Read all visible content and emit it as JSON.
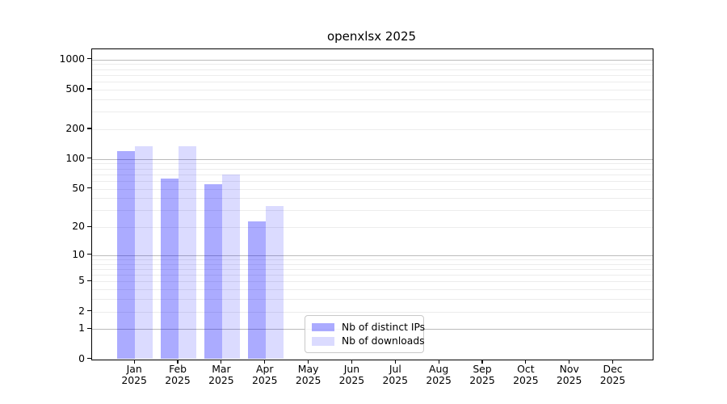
{
  "title": "openxlsx 2025",
  "legend": {
    "items": [
      {
        "label": "Nb of distinct IPs",
        "key": "ips"
      },
      {
        "label": "Nb of downloads",
        "key": "downloads"
      }
    ]
  },
  "colors": {
    "ips": "rgba(0,0,255,0.33)",
    "downloads": "rgba(0,0,255,0.14)",
    "ips_hex_on_white": "#abaaf6",
    "downloads_hex_on_white": "#dcdcf8",
    "major_grid": "#bbbbbb",
    "minor_grid": "#ececec",
    "axis": "#000000",
    "legend_border": "#c9c9c9"
  },
  "chart_data": {
    "type": "bar",
    "title": "openxlsx 2025",
    "categories": [
      "Jan 2025",
      "Feb 2025",
      "Mar 2025",
      "Apr 2025",
      "May 2025",
      "Jun 2025",
      "Jul 2025",
      "Aug 2025",
      "Sep 2025",
      "Oct 2025",
      "Nov 2025",
      "Dec 2025"
    ],
    "months": [
      "Jan",
      "Feb",
      "Mar",
      "Apr",
      "May",
      "Jun",
      "Jul",
      "Aug",
      "Sep",
      "Oct",
      "Nov",
      "Dec"
    ],
    "year": "2025",
    "series": [
      {
        "name": "Nb of distinct IPs",
        "key": "ips",
        "values": [
          120,
          63,
          56,
          23,
          0,
          0,
          0,
          0,
          0,
          0,
          0,
          0
        ]
      },
      {
        "name": "Nb of downloads",
        "key": "downloads",
        "values": [
          135,
          135,
          70,
          33,
          0,
          0,
          0,
          0,
          0,
          0,
          0,
          0
        ]
      }
    ],
    "xlabel": "",
    "ylabel": "",
    "yscale": "log1p",
    "yticks": [
      0,
      1,
      2,
      5,
      10,
      20,
      50,
      100,
      200,
      500,
      1000
    ],
    "ylim": [
      0,
      1270
    ],
    "grid": "horizontal, major lines at 1/10/100/1000, minor lines at 2-9 per decade",
    "legend_position": "inside lower-center"
  }
}
